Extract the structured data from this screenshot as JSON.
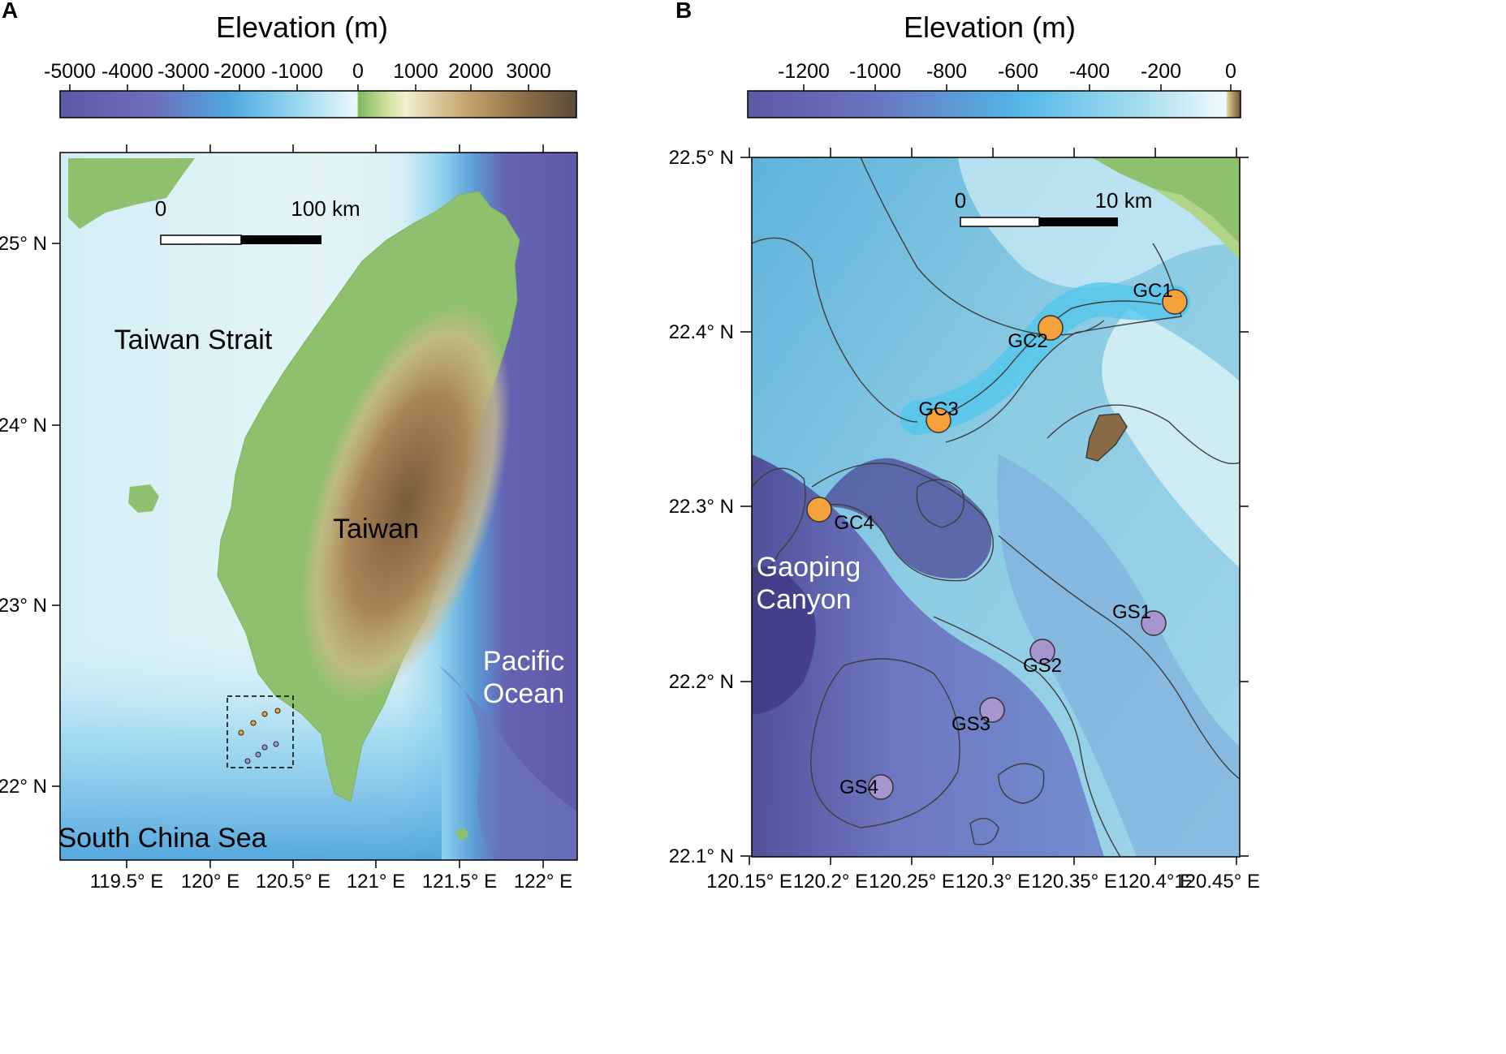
{
  "panels": {
    "a": {
      "letter": "A",
      "colorbar": {
        "title": "Elevation (m)",
        "ticks": [
          "-5000",
          "-4000",
          "-3000",
          "-2000",
          "-1000",
          "0",
          "1000",
          "2000",
          "3000"
        ]
      },
      "lat_labels": [
        "25° N",
        "24° N",
        "23° N",
        "22° N"
      ],
      "lon_labels": [
        "119.5° E",
        "120° E",
        "120.5° E",
        "121° E",
        "121.5° E",
        "122° E"
      ],
      "scale_bar": {
        "start": "0",
        "end": "100 km"
      },
      "places": {
        "strait": "Taiwan Strait",
        "island": "Taiwan",
        "pacific_1": "Pacific",
        "pacific_2": "Ocean",
        "scs": "South China Sea"
      }
    },
    "b": {
      "letter": "B",
      "colorbar": {
        "title": "Elevation (m)",
        "ticks": [
          "-1200",
          "-1000",
          "-800",
          "-600",
          "-400",
          "-200",
          "0"
        ]
      },
      "lat_labels": [
        "22.5° N",
        "22.4° N",
        "22.3° N",
        "22.2° N",
        "22.1° N"
      ],
      "lon_labels": [
        "120.15° E",
        "120.2° E",
        "120.25° E",
        "120.3° E",
        "120.35° E",
        "120.4° E",
        "120.45° E"
      ],
      "scale_bar": {
        "start": "0",
        "end": "10 km"
      },
      "places": {
        "canyon_1": "Gaoping",
        "canyon_2": "Canyon"
      },
      "sites": [
        {
          "id": "GC1",
          "group": "canyon"
        },
        {
          "id": "GC2",
          "group": "canyon"
        },
        {
          "id": "GC3",
          "group": "canyon"
        },
        {
          "id": "GC4",
          "group": "canyon"
        },
        {
          "id": "GS1",
          "group": "slope"
        },
        {
          "id": "GS2",
          "group": "slope"
        },
        {
          "id": "GS3",
          "group": "slope"
        },
        {
          "id": "GS4",
          "group": "slope"
        }
      ]
    }
  },
  "colors": {
    "canyon_site": "#f5a23c",
    "slope_site": "#a895cf",
    "deep": "#5f5aa8",
    "shelf": "#dff3f8",
    "lowland": "#8fc06e",
    "highland": "#6e5333"
  }
}
